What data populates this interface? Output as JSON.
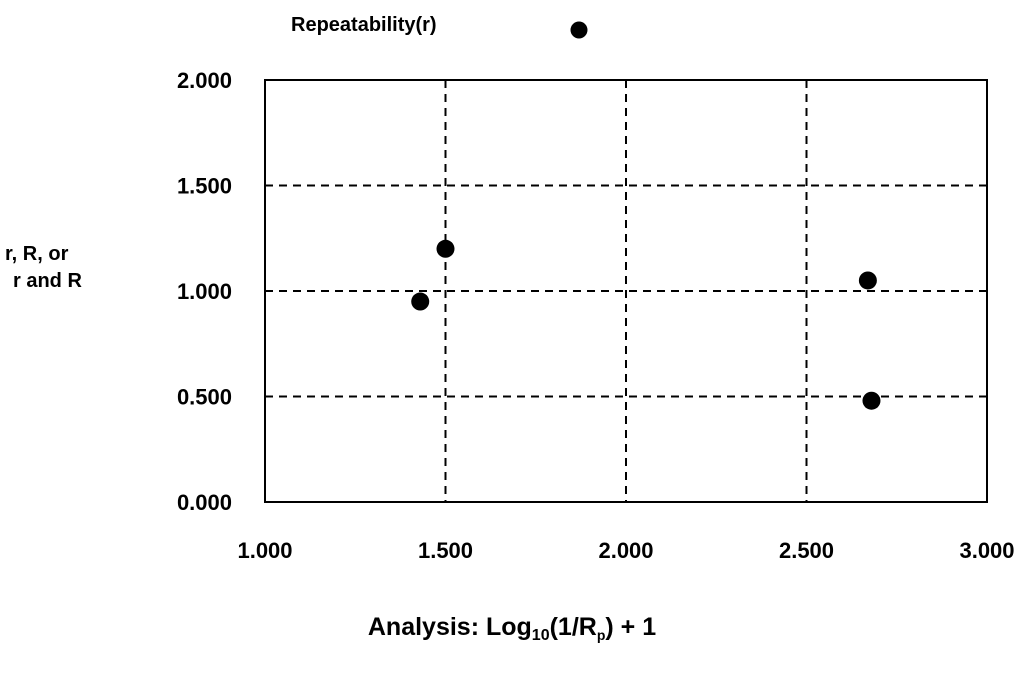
{
  "chart_data": {
    "type": "scatter",
    "title": "",
    "legend": [
      {
        "name": "Repeatability(r)",
        "marker": "filled-circle",
        "color": "#000000"
      }
    ],
    "legend_placement": "top",
    "ylabel_lines": [
      "r, R, or",
      "r and R"
    ],
    "xlabel": {
      "prefix": "Analysis: Log",
      "sub1": "10",
      "middle": "(1/R",
      "sub2": "p",
      "suffix": ") + 1"
    },
    "xlim": [
      1.0,
      3.0
    ],
    "ylim": [
      0.0,
      2.0
    ],
    "x_ticks": [
      1.0,
      1.5,
      2.0,
      2.5,
      3.0
    ],
    "y_ticks": [
      0.0,
      0.5,
      1.0,
      1.5,
      2.0
    ],
    "x_tick_labels": [
      "1.000",
      "1.500",
      "2.000",
      "2.500",
      "3.000"
    ],
    "y_tick_labels": [
      "0.000",
      "0.500",
      "1.000",
      "1.500",
      "2.000"
    ],
    "grid": "dashed",
    "series": [
      {
        "name": "Repeatability(r)",
        "color": "#000000",
        "points": [
          {
            "x": 1.43,
            "y": 0.95
          },
          {
            "x": 1.5,
            "y": 1.2
          },
          {
            "x": 2.67,
            "y": 1.05
          },
          {
            "x": 2.68,
            "y": 0.48
          }
        ]
      }
    ]
  }
}
